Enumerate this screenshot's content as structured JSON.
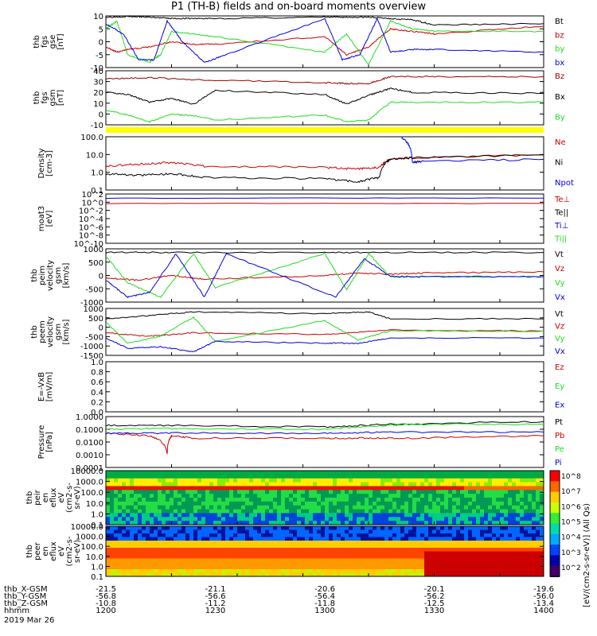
{
  "title": "P1 (TH-B) fields and on-board moments overview",
  "colors": {
    "black": "#000000",
    "red": "#cc0000",
    "green": "#22dd22",
    "blue": "#0000dd",
    "yellow": "#ffff00",
    "darkred": "#990000"
  },
  "footer": {
    "rows": [
      {
        "label": "thb_X-GSM",
        "values": [
          "-21.5",
          "-21.1",
          "-20.6",
          "-20.1",
          "-19.6"
        ]
      },
      {
        "label": "thb_Y-GSM",
        "values": [
          "-56.8",
          "-56.6",
          "-56.4",
          "-56.2",
          "-56.0"
        ]
      },
      {
        "label": "thb_Z-GSM",
        "values": [
          "-10.8",
          "-11.2",
          "-11.8",
          "-12.5",
          "-13.4"
        ]
      },
      {
        "label": "hhmm",
        "values": [
          "1200",
          "1230",
          "1300",
          "1330",
          "1400"
        ]
      }
    ],
    "date": "2019 Mar 26"
  },
  "colorbar": {
    "ticks": [
      "10^8",
      "10^7",
      "10^6",
      "10^5",
      "10^4",
      "10^3",
      "10^2"
    ],
    "label": "[eV/(cm2-s-sr-eV)] (All Qs)"
  },
  "chart_data": [
    {
      "id": "fgs",
      "type": "line",
      "ylabel": [
        "thb",
        "fgs",
        "gse",
        "[nT]"
      ],
      "ylim": [
        -10,
        10
      ],
      "yticks": [
        "10",
        "5",
        "0",
        "-5",
        "-10"
      ],
      "legend": [
        {
          "name": "Bt",
          "color": "black"
        },
        {
          "name": "bz",
          "color": "red"
        },
        {
          "name": "by",
          "color": "green"
        },
        {
          "name": "bx",
          "color": "blue"
        }
      ],
      "series": [
        {
          "name": "Bt",
          "x": [
            1200,
            1210,
            1220,
            1230,
            1240,
            1250,
            1300,
            1310,
            1320,
            1330,
            1340,
            1350,
            1400
          ],
          "y": [
            9.5,
            9.8,
            9.5,
            9,
            9,
            9,
            9.5,
            9.5,
            9.5,
            9,
            8.5,
            6.5,
            7
          ]
        },
        {
          "name": "bz",
          "x": [
            1200,
            1205,
            1210,
            1220,
            1230,
            1240,
            1250,
            1300,
            1310,
            1320,
            1330,
            1340,
            1350,
            1400
          ],
          "y": [
            -2,
            -4,
            -3,
            -2,
            0,
            -1,
            -1,
            2,
            -5,
            -2,
            5,
            4,
            3,
            6
          ]
        },
        {
          "name": "by",
          "x": [
            1200,
            1205,
            1210,
            1220,
            1225,
            1230,
            1240,
            1250,
            1300,
            1310,
            1320,
            1330,
            1340,
            1350,
            1400
          ],
          "y": [
            5,
            8,
            -5,
            -8,
            -5,
            4,
            3,
            2,
            -4,
            3,
            -9,
            8,
            5,
            4,
            4
          ]
        },
        {
          "name": "bx",
          "x": [
            1200,
            1208,
            1215,
            1222,
            1228,
            1235,
            1245,
            1255,
            1300,
            1308,
            1316,
            1324,
            1330,
            1340,
            1350,
            1400
          ],
          "y": [
            7,
            3,
            -7,
            -7,
            8,
            0,
            -8,
            -5,
            9,
            -7,
            -5,
            9,
            -4,
            -3,
            -3,
            -4
          ]
        }
      ]
    },
    {
      "id": "fgs-gsm",
      "type": "line",
      "ylabel": [
        "thb",
        "fgs",
        "gsm",
        "[nT]"
      ],
      "ylim": [
        -15,
        40
      ],
      "yticks": [
        "40",
        "30",
        "20",
        "10",
        "0",
        "-10"
      ],
      "legend": [
        {
          "name": "Bz",
          "color": "darkred"
        },
        {
          "name": "Bx",
          "color": "black"
        },
        {
          "name": "By",
          "color": "green"
        }
      ],
      "series": [
        {
          "name": "Bz",
          "x": [
            1200,
            1220,
            1240,
            1300,
            1310,
            1320,
            1330,
            1350,
            1400
          ],
          "y": [
            32,
            33,
            31,
            28,
            27,
            27,
            34,
            34,
            34
          ]
        },
        {
          "name": "Bx",
          "x": [
            1200,
            1210,
            1220,
            1230,
            1240,
            1250,
            1300,
            1310,
            1320,
            1330,
            1340,
            1400
          ],
          "y": [
            18,
            16,
            8,
            12,
            6,
            20,
            16,
            6,
            15,
            22,
            18,
            17
          ]
        },
        {
          "name": "By",
          "x": [
            1200,
            1210,
            1220,
            1230,
            1240,
            1250,
            1300,
            1310,
            1320,
            1330,
            1340,
            1400
          ],
          "y": [
            0,
            -5,
            -12,
            -4,
            -6,
            -10,
            -5,
            -12,
            -10,
            8,
            8,
            8
          ]
        }
      ]
    },
    {
      "id": "density",
      "type": "line",
      "ylabel": [
        "Density",
        "[cm-3]"
      ],
      "yscale": "log",
      "ylim": [
        0.1,
        200
      ],
      "yticks": [
        "100.0",
        "10.0",
        "1.0",
        "0.1"
      ],
      "legend": [
        {
          "name": "Ne",
          "color": "red"
        },
        {
          "name": "Ni",
          "color": "black"
        },
        {
          "name": "Npot",
          "color": "blue"
        }
      ],
      "series": [
        {
          "name": "Ne",
          "x": [
            1200,
            1215,
            1230,
            1245,
            1300,
            1315,
            1325,
            1330,
            1340,
            1400
          ],
          "y": [
            3,
            4,
            5,
            3,
            2.5,
            2,
            2.5,
            8,
            10,
            15
          ]
        },
        {
          "name": "Ni",
          "x": [
            1200,
            1215,
            1230,
            1245,
            1300,
            1315,
            1325,
            1330,
            1340,
            1400
          ],
          "y": [
            1,
            0.8,
            1,
            0.6,
            0.5,
            0.3,
            0.6,
            8,
            10,
            15
          ]
        },
        {
          "name": "Npot",
          "x": [
            1335,
            1340,
            1345,
            1400
          ],
          "y": [
            180,
            5,
            6,
            8
          ]
        }
      ]
    },
    {
      "id": "temperature",
      "type": "line",
      "ylabel": [
        "moat3",
        "[eV]"
      ],
      "yscale": "log",
      "ylim": [
        1e-10,
        100
      ],
      "yticks": [
        "10^2",
        "10^0",
        "10^-2",
        "10^-4",
        "10^-6",
        "10^-8",
        "10^-10"
      ],
      "legend": [
        {
          "name": "Te⊥",
          "color": "red"
        },
        {
          "name": "Te||",
          "color": "black"
        },
        {
          "name": "Ti⊥",
          "color": "blue"
        },
        {
          "name": "Ti||",
          "color": "green"
        }
      ],
      "series": [
        {
          "name": "Ti⊥",
          "x": [
            1200,
            1400
          ],
          "y": [
            10,
            10
          ]
        },
        {
          "name": "Te⊥",
          "x": [
            1200,
            1400
          ],
          "y": [
            0.5,
            0.5
          ]
        }
      ]
    },
    {
      "id": "peim",
      "type": "line",
      "ylabel": [
        "thb",
        "peim",
        "velocity",
        "gsm",
        "[km/s]"
      ],
      "ylim": [
        -1100,
        1100
      ],
      "yticks": [
        "1000",
        "500",
        "0",
        "-500",
        "-1000"
      ],
      "legend": [
        {
          "name": "Vt",
          "color": "black"
        },
        {
          "name": "Vz",
          "color": "red"
        },
        {
          "name": "Vy",
          "color": "green"
        },
        {
          "name": "Vx",
          "color": "blue"
        }
      ],
      "series": [
        {
          "name": "Vt",
          "x": [
            1200,
            1230,
            1300,
            1330,
            1400
          ],
          "y": [
            950,
            950,
            950,
            950,
            950
          ]
        },
        {
          "name": "Vz",
          "x": [
            1200,
            1215,
            1230,
            1245,
            1300,
            1315,
            1330,
            1345,
            1400
          ],
          "y": [
            -100,
            -200,
            0,
            -150,
            0,
            100,
            50,
            100,
            150
          ]
        },
        {
          "name": "Vy",
          "x": [
            1200,
            1210,
            1225,
            1240,
            1250,
            1300,
            1310,
            1320,
            1330,
            1345,
            1400
          ],
          "y": [
            800,
            -300,
            -900,
            900,
            -500,
            900,
            -600,
            900,
            -50,
            -50,
            -50
          ]
        },
        {
          "name": "Vx",
          "x": [
            1200,
            1210,
            1220,
            1232,
            1245,
            1255,
            1305,
            1318,
            1330,
            1345,
            1400
          ],
          "y": [
            -200,
            -900,
            -700,
            900,
            -900,
            900,
            -900,
            700,
            -50,
            -50,
            -50
          ]
        }
      ]
    },
    {
      "id": "peem",
      "type": "line",
      "ylabel": [
        "thb",
        "peem",
        "velocity",
        "gsm",
        "[km/s]"
      ],
      "ylim": [
        -1500,
        1200
      ],
      "yticks": [
        "1000",
        "500",
        "0",
        "-500",
        "-1000",
        "-1500"
      ],
      "legend": [
        {
          "name": "Vt",
          "color": "black"
        },
        {
          "name": "Vz",
          "color": "red"
        },
        {
          "name": "Vy",
          "color": "green"
        },
        {
          "name": "Vx",
          "color": "blue"
        }
      ],
      "series": [
        {
          "name": "Vt",
          "x": [
            1200,
            1220,
            1240,
            1300,
            1320,
            1330,
            1400
          ],
          "y": [
            600,
            800,
            1000,
            900,
            1000,
            600,
            600
          ]
        },
        {
          "name": "Vz",
          "x": [
            1200,
            1220,
            1240,
            1300,
            1330,
            1400
          ],
          "y": [
            -200,
            -400,
            -200,
            -300,
            -50,
            -100
          ]
        },
        {
          "name": "Vy",
          "x": [
            1200,
            1210,
            1225,
            1240,
            1250,
            1300,
            1315,
            1330,
            1400
          ],
          "y": [
            400,
            -800,
            -400,
            700,
            -700,
            500,
            -600,
            -100,
            -100
          ]
        },
        {
          "name": "Vx",
          "x": [
            1200,
            1210,
            1225,
            1240,
            1250,
            1300,
            1315,
            1330,
            1400
          ],
          "y": [
            -500,
            -1100,
            -1000,
            -1300,
            -700,
            -800,
            -800,
            -500,
            -500
          ]
        }
      ]
    },
    {
      "id": "efield",
      "type": "line",
      "ylabel": [
        "E=-VxB",
        "[mV/m]"
      ],
      "ylim": [
        0,
        1
      ],
      "yticks": [
        "1.0",
        "0.8",
        "0.6",
        "0.4",
        "0.2",
        "0.0"
      ],
      "legend": [
        {
          "name": "Ez",
          "color": "red"
        },
        {
          "name": "Ey",
          "color": "green"
        },
        {
          "name": "Ex",
          "color": "blue"
        }
      ],
      "series": []
    },
    {
      "id": "pressure",
      "type": "line",
      "ylabel": [
        "Pressure",
        "[nPa]"
      ],
      "yscale": "log",
      "ylim": [
        0.0001,
        1
      ],
      "yticks": [
        "1.0000",
        "0.1000",
        "0.0100",
        "0.0010",
        "0.0001"
      ],
      "legend": [
        {
          "name": "Pt",
          "color": "black"
        },
        {
          "name": "Pb",
          "color": "red"
        },
        {
          "name": "Pe",
          "color": "green"
        },
        {
          "name": "Pi",
          "color": "blue"
        }
      ],
      "series": [
        {
          "name": "Pt",
          "x": [
            1200,
            1230,
            1300,
            1330,
            1400
          ],
          "y": [
            0.2,
            0.2,
            0.15,
            0.25,
            0.4
          ]
        },
        {
          "name": "Pb",
          "x": [
            1200,
            1220,
            1228,
            1230,
            1240,
            1300,
            1320,
            1340,
            1400
          ],
          "y": [
            0.05,
            0.03,
            0.001,
            0.03,
            0.02,
            0.02,
            0.02,
            0.02,
            0.03
          ]
        },
        {
          "name": "Pe",
          "x": [
            1200,
            1230,
            1300,
            1330,
            1340,
            1400
          ],
          "y": [
            0.1,
            0.12,
            0.1,
            0.2,
            0.25,
            0.25
          ]
        },
        {
          "name": "Pi",
          "x": [
            1200,
            1230,
            1300,
            1330,
            1400
          ],
          "y": [
            0.05,
            0.05,
            0.05,
            0.06,
            0.06
          ]
        }
      ]
    },
    {
      "id": "peir-spec",
      "type": "heatmap",
      "ylabel": [
        "thb",
        "peir",
        "en",
        "eflux",
        "eV",
        "(cm2-s-",
        "sr-eV)"
      ],
      "yscale": "log",
      "ylim": [
        0.1,
        10000
      ],
      "yticks": [
        "10000.0",
        "1000.0",
        "100.0",
        "10.0",
        "1.0",
        "0.1"
      ]
    },
    {
      "id": "peer-spec",
      "type": "heatmap",
      "ylabel": [
        "thb",
        "peer",
        "en",
        "eflux",
        "eV",
        "(cm2-s-",
        "sr-eV)"
      ],
      "yscale": "log",
      "ylim": [
        0.1,
        10000
      ],
      "yticks": [
        "10000.0",
        "1000.0",
        "100.0",
        "10.0",
        "1.0",
        "0.1"
      ]
    }
  ]
}
